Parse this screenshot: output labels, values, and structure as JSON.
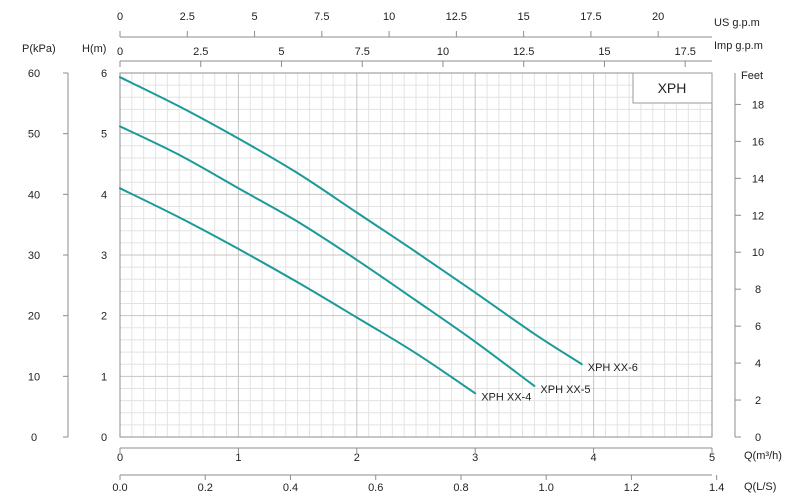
{
  "chart_data": {
    "type": "line",
    "title": "",
    "badge": "XPH",
    "axes": {
      "flow_m3h": {
        "label": "Q(m³/h)",
        "range": [
          0,
          5
        ],
        "ticks": [
          "0",
          "1",
          "2",
          "3",
          "4",
          "5"
        ]
      },
      "flow_ls": {
        "label": "Q(L/S)",
        "range": [
          0,
          1.389
        ],
        "ticks": [
          "0.0",
          "0.2",
          "0.4",
          "0.6",
          "0.8",
          "1.0",
          "1.2",
          "1.4"
        ]
      },
      "flow_usgpm": {
        "label": "US  g.p.m",
        "range": [
          0,
          22.0
        ],
        "ticks": [
          "0",
          "2.5",
          "5",
          "7.5",
          "10",
          "12.5",
          "15",
          "17.5",
          "20"
        ]
      },
      "flow_impgpm": {
        "label": "Imp  g.p.m",
        "range": [
          0,
          18.33
        ],
        "ticks": [
          "0",
          "2.5",
          "5",
          "7.5",
          "10",
          "12.5",
          "15",
          "17.5"
        ]
      },
      "head_m": {
        "label": "H(m)",
        "range": [
          0,
          6
        ],
        "ticks": [
          "0",
          "1",
          "2",
          "3",
          "4",
          "5",
          "6"
        ]
      },
      "pressure_kpa": {
        "label": "P(kPa)",
        "range": [
          0,
          60
        ],
        "ticks": [
          "0",
          "10",
          "20",
          "30",
          "40",
          "50",
          "60"
        ]
      },
      "head_ft": {
        "label": "Feet",
        "range": [
          0,
          19.7
        ],
        "ticks": [
          "0",
          "2",
          "4",
          "6",
          "8",
          "10",
          "12",
          "14",
          "16",
          "18"
        ]
      }
    },
    "grid": true,
    "line_color": "#1a9a98",
    "series": [
      {
        "name": "XPH XX-4",
        "x": [
          0,
          0.5,
          1.0,
          1.5,
          2.0,
          2.5,
          3.0
        ],
        "y": [
          4.1,
          3.62,
          3.1,
          2.55,
          1.97,
          1.38,
          0.72
        ]
      },
      {
        "name": "XPH XX-5",
        "x": [
          0,
          0.5,
          1.0,
          1.5,
          2.0,
          2.5,
          3.0,
          3.5
        ],
        "y": [
          5.12,
          4.65,
          4.1,
          3.55,
          2.92,
          2.25,
          1.57,
          0.84
        ]
      },
      {
        "name": "XPH XX-6",
        "x": [
          0,
          0.5,
          1.0,
          1.5,
          2.0,
          2.5,
          3.0,
          3.5,
          3.9
        ],
        "y": [
          5.93,
          5.45,
          4.92,
          4.35,
          3.7,
          3.05,
          2.38,
          1.7,
          1.2
        ]
      }
    ]
  }
}
